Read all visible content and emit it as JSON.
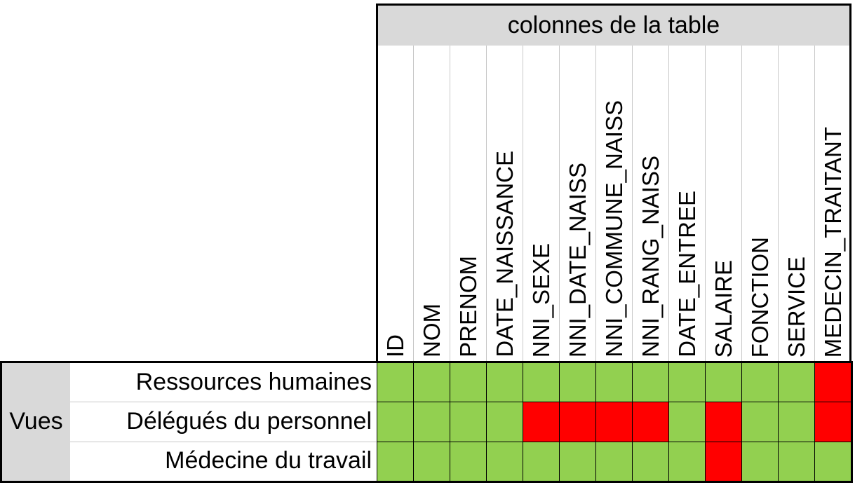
{
  "header": {
    "title": "colonnes de la table"
  },
  "columns": [
    "ID",
    "NOM",
    "PRENOM",
    "DATE_NAISSANCE",
    "NNI_SEXE",
    "NNI_DATE_NAISS",
    "NNI_COMMUNE_NAISS",
    "NNI_RANG_NAISS",
    "DATE_ENTREE",
    "SALAIRE",
    "FONCTION",
    "SERVICE",
    "MEDECIN_TRAITANT"
  ],
  "rows_group_label": "Vues",
  "rows": [
    {
      "label": "Ressources humaines",
      "access": [
        "allowed",
        "allowed",
        "allowed",
        "allowed",
        "allowed",
        "allowed",
        "allowed",
        "allowed",
        "allowed",
        "allowed",
        "allowed",
        "allowed",
        "denied"
      ]
    },
    {
      "label": "Délégués du personnel",
      "access": [
        "allowed",
        "allowed",
        "allowed",
        "allowed",
        "denied",
        "denied",
        "denied",
        "denied",
        "allowed",
        "denied",
        "allowed",
        "allowed",
        "denied"
      ]
    },
    {
      "label": "Médecine du travail",
      "access": [
        "allowed",
        "allowed",
        "allowed",
        "allowed",
        "allowed",
        "allowed",
        "allowed",
        "allowed",
        "allowed",
        "denied",
        "allowed",
        "allowed",
        "allowed"
      ]
    }
  ],
  "colors": {
    "allowed": "#92d050",
    "denied": "#ff0000",
    "band": "#d9d9d9"
  }
}
